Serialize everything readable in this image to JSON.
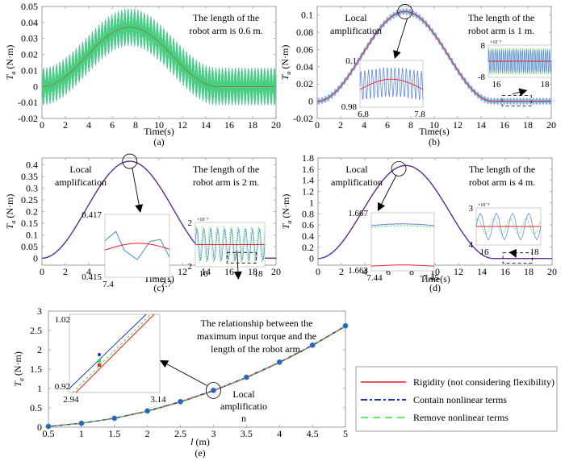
{
  "colors": {
    "rigidity": "#e8202a",
    "contain": "#1a2fd6",
    "remove": "#2ee82e",
    "band_blue": "#5b8fe0",
    "band_green": "#3fd86a"
  },
  "chart_data": [
    {
      "id": "a",
      "type": "line",
      "caption": "(a)",
      "xlabel": "Time(s)",
      "ylabel": "T_a (N·m)",
      "xlim": [
        0,
        20
      ],
      "ylim": [
        -0.02,
        0.05
      ],
      "xticks": [
        0,
        2,
        4,
        6,
        8,
        10,
        12,
        14,
        16,
        18,
        20
      ],
      "yticks": [
        -0.02,
        -0.01,
        0,
        0.01,
        0.02,
        0.03,
        0.04,
        0.05
      ],
      "ytick_labels": [
        "-0.02",
        "-0.01",
        "0",
        "0.01",
        "0.02",
        "0.03",
        "0.04",
        "0.05"
      ],
      "peak": 0.037,
      "peak_time": 7.5,
      "end_time": 15,
      "oscillation_amplitude": 0.012,
      "annotation": [
        "The length of the",
        "robot arm  is 0.6 m."
      ]
    },
    {
      "id": "b",
      "type": "line",
      "caption": "(b)",
      "xlabel": "Time(s)",
      "ylabel": "T_a (N·m)",
      "xlim": [
        0,
        20
      ],
      "ylim": [
        -0.02,
        0.11
      ],
      "xticks": [
        0,
        2,
        4,
        6,
        8,
        10,
        12,
        14,
        16,
        18,
        20
      ],
      "yticks": [
        -0.02,
        0,
        0.02,
        0.04,
        0.06,
        0.08,
        0.1
      ],
      "ytick_labels": [
        "-0.02",
        "0",
        "0.02",
        "0.04",
        "0.06",
        "0.08",
        "0.1"
      ],
      "peak": 0.104,
      "peak_time": 7.5,
      "end_time": 15,
      "oscillation_amplitude": 0.004,
      "annotation": [
        "The length of the",
        "robot arm  is 1 m."
      ],
      "local_label": [
        "Local",
        "amplification"
      ],
      "inset_peak": {
        "xlim_labels": [
          "6.8",
          "7.8"
        ],
        "ylim_labels": [
          "0.98",
          "0.1"
        ]
      },
      "inset_tail": {
        "xlim_labels": [
          "16",
          "18"
        ],
        "ylim_labels": [
          "-8",
          "8"
        ],
        "exponent": "×10⁻³"
      }
    },
    {
      "id": "c",
      "type": "line",
      "caption": "(c)",
      "xlabel": "Time(s)",
      "ylabel": "T_a (N·m)",
      "xlim": [
        0,
        20
      ],
      "ylim": [
        -0.03,
        0.43
      ],
      "xticks": [
        0,
        2,
        4,
        6,
        8,
        10,
        12,
        14,
        16,
        18,
        20
      ],
      "yticks": [
        0,
        0.05,
        0.1,
        0.15,
        0.2,
        0.25,
        0.3,
        0.35,
        0.4
      ],
      "ytick_labels": [
        "0",
        "0.05",
        "0.1",
        "0.15",
        "0.2",
        "0.25",
        "0.3",
        "0.35",
        "0.4"
      ],
      "peak": 0.416,
      "peak_time": 7.5,
      "end_time": 15,
      "oscillation_amplitude": 0,
      "annotation": [
        "The length of the",
        "robot arm  is 2 m."
      ],
      "local_label": [
        "Local",
        "amplification"
      ],
      "inset_peak": {
        "xlim_labels": [
          "7.4",
          "7.7"
        ],
        "ylim_labels": [
          "0.415",
          "0.417"
        ]
      },
      "inset_tail": {
        "xlim_labels": [
          "16",
          "18"
        ],
        "ylim_labels": [
          "2",
          "2"
        ],
        "exponent": "×10⁻³"
      }
    },
    {
      "id": "d",
      "type": "line",
      "caption": "(d)",
      "xlabel": "Time(s)",
      "ylabel": "T_a (N·m)",
      "xlim": [
        0,
        20
      ],
      "ylim": [
        -0.12,
        1.8
      ],
      "xticks": [
        0,
        2,
        4,
        6,
        8,
        10,
        12,
        14,
        16,
        18,
        20
      ],
      "yticks": [
        0,
        0.2,
        0.4,
        0.6,
        0.8,
        1,
        1.2,
        1.4,
        1.6,
        1.8
      ],
      "ytick_labels": [
        "0",
        "0.2",
        "0.4",
        "0.6",
        "0.8",
        "1",
        "1.2",
        "1.4",
        "1.6",
        "1.8"
      ],
      "peak": 1.665,
      "peak_time": 7.5,
      "end_time": 15,
      "oscillation_amplitude": 0,
      "annotation": [
        "The length of the",
        "robot arm  is 4 m."
      ],
      "local_label": [
        "Local",
        "amplification"
      ],
      "inset_peak": {
        "xlim_labels": [
          "7.44",
          "7.45"
        ],
        "ylim_labels": [
          "1.663",
          "1.667"
        ]
      },
      "inset_tail": {
        "xlim_labels": [
          "16",
          "18"
        ],
        "ylim_labels": [
          "4",
          "3"
        ],
        "exponent": "×10⁻³"
      }
    },
    {
      "id": "e",
      "type": "line",
      "caption": "(e)",
      "xlabel": "l (m)",
      "ylabel": "T_a (N·m)",
      "xlim": [
        0.5,
        5
      ],
      "ylim": [
        0,
        3
      ],
      "xticks": [
        0.5,
        1,
        1.5,
        2,
        2.5,
        3,
        3.5,
        4,
        4.5,
        5
      ],
      "xtick_labels": [
        "0.5",
        "1",
        "1.5",
        "2",
        "2.5",
        "3",
        "3.5",
        "4",
        "4.5",
        "5"
      ],
      "yticks": [
        0,
        0.5,
        1,
        1.5,
        2,
        2.5,
        3
      ],
      "ytick_labels": [
        "0",
        "0.5",
        "1",
        "1.5",
        "2",
        "2.5",
        "3"
      ],
      "x": [
        0.5,
        1,
        1.5,
        2,
        2.5,
        3,
        3.5,
        4,
        4.5,
        5
      ],
      "series": [
        {
          "name": "Rigidity (not considering flexibility)",
          "values": [
            0.02,
            0.1,
            0.23,
            0.41,
            0.65,
            0.94,
            1.28,
            1.67,
            2.11,
            2.61
          ]
        },
        {
          "name": "Contain nonlinear terms",
          "values": [
            0.02,
            0.1,
            0.23,
            0.42,
            0.66,
            0.95,
            1.29,
            1.68,
            2.12,
            2.62
          ]
        },
        {
          "name": "Remove nonlinear terms",
          "values": [
            0.02,
            0.1,
            0.23,
            0.41,
            0.65,
            0.945,
            1.285,
            1.675,
            2.115,
            2.615
          ]
        }
      ],
      "annotation": [
        "The relationship between the",
        "maximum  input torque and the",
        "length of  the robot arm."
      ],
      "local_label": [
        "Local",
        "amplificatio",
        "n"
      ],
      "inset": {
        "xlim_labels": [
          "2.94",
          "3.14"
        ],
        "ylim_labels": [
          "0.92",
          "1.02"
        ]
      },
      "legend": {
        "placement": "right",
        "entries": [
          "Rigidity (not considering flexibility)",
          "Contain nonlinear terms",
          "Remove nonlinear terms"
        ]
      }
    }
  ]
}
